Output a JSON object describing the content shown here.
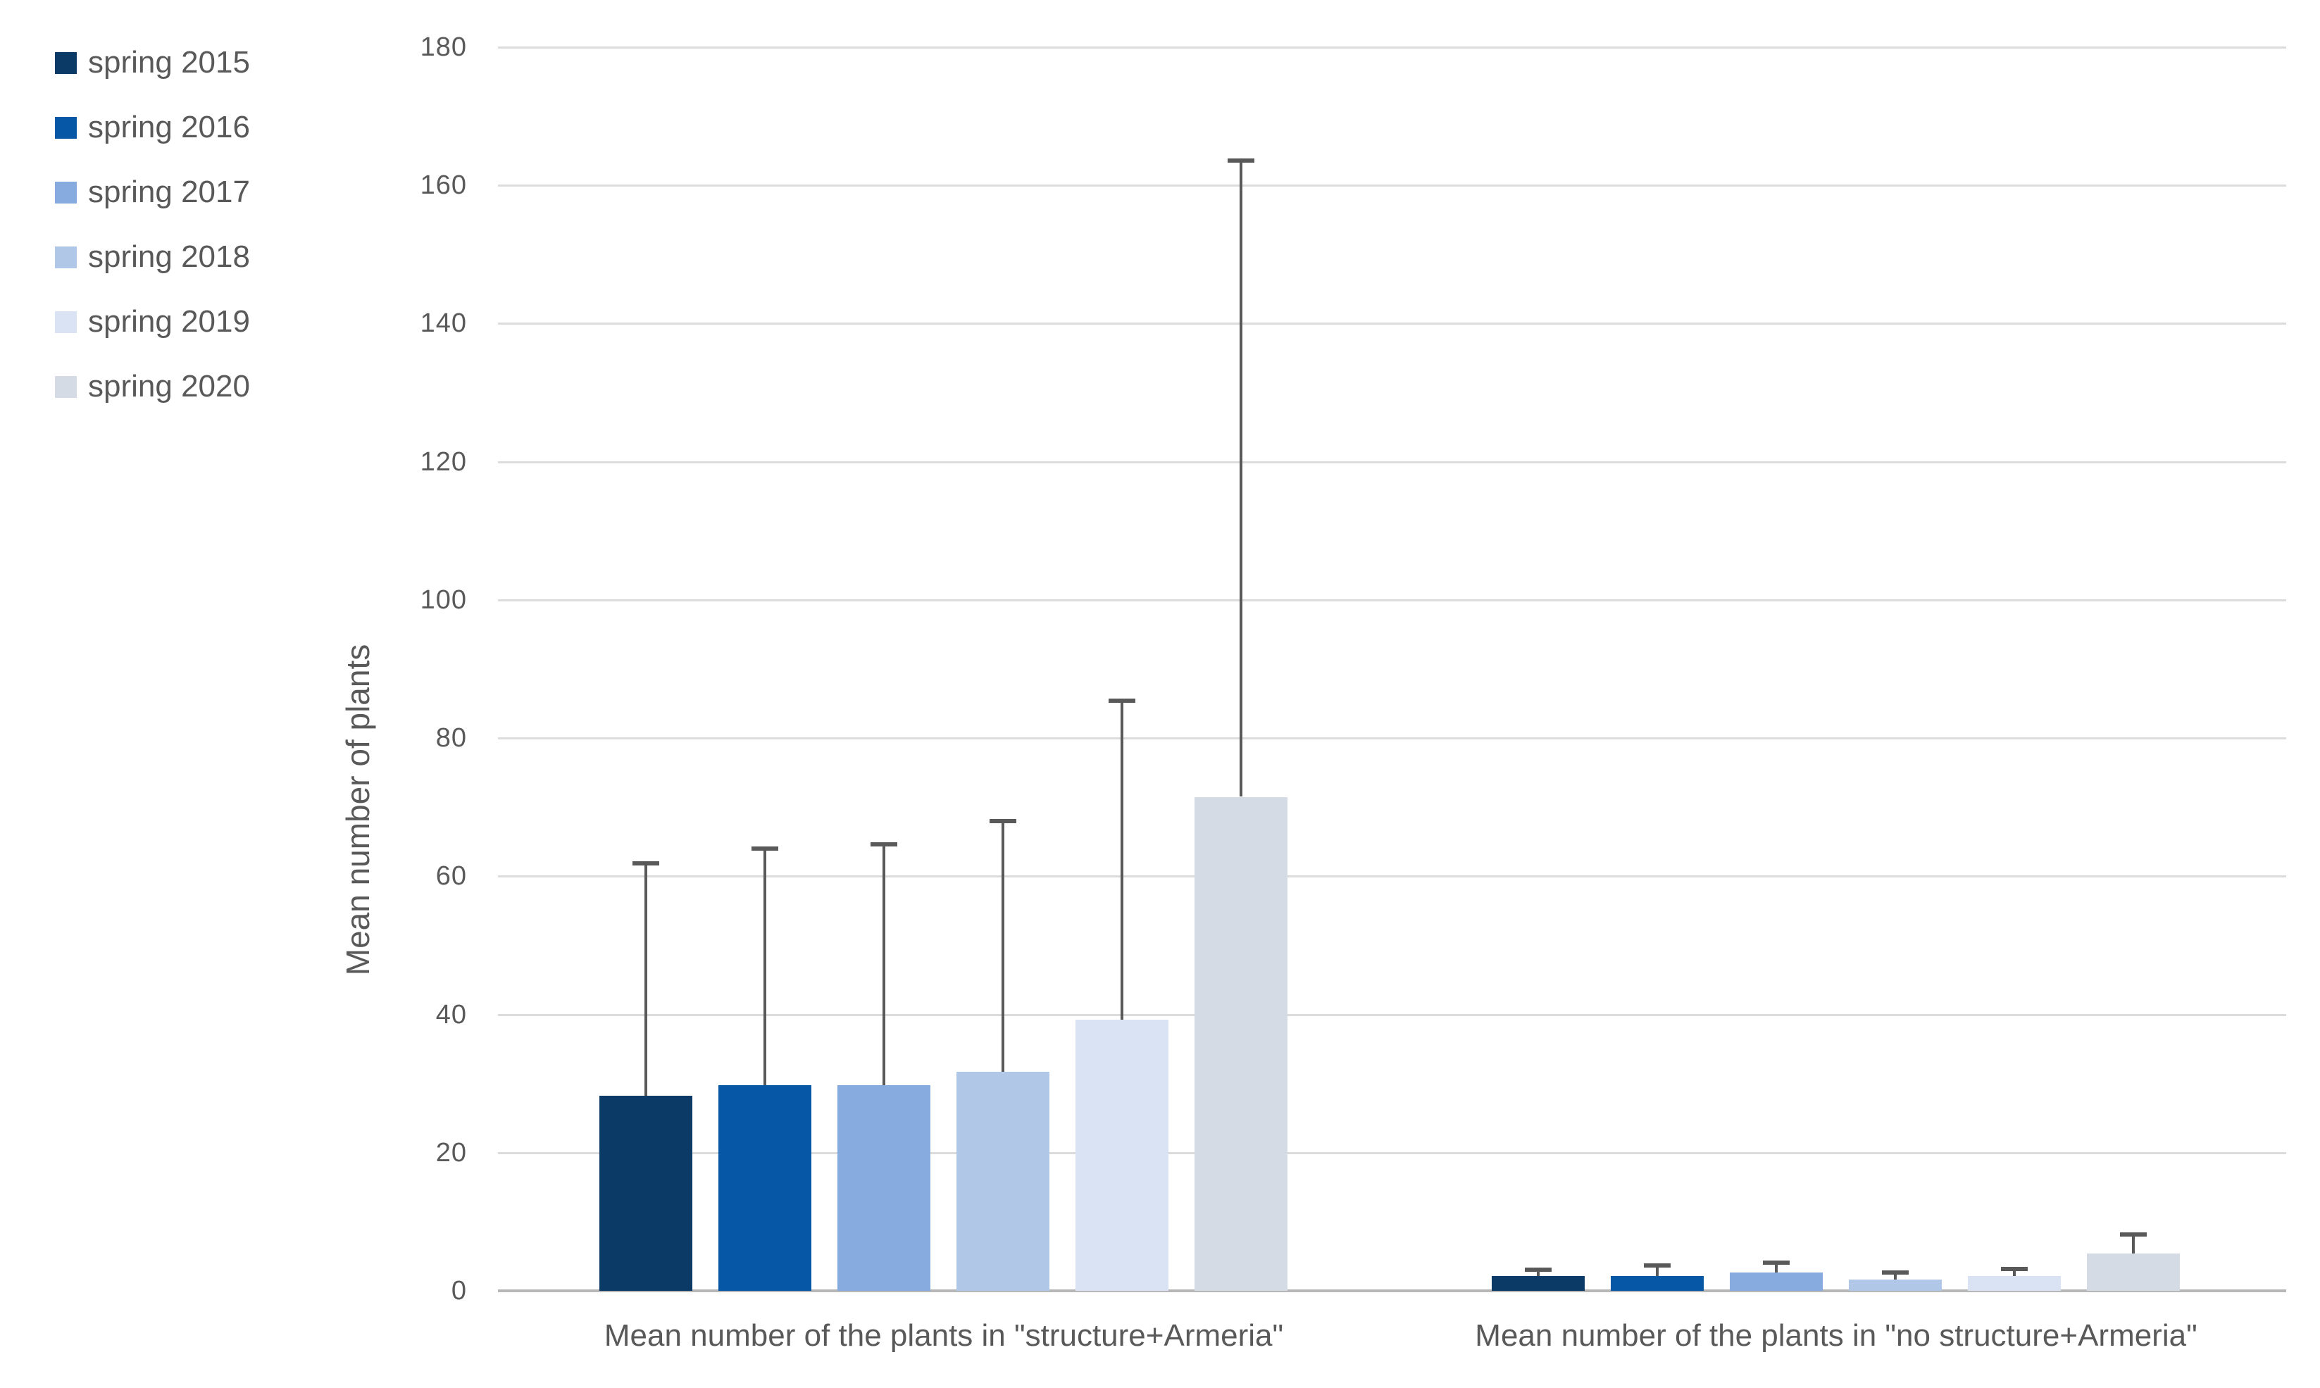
{
  "chart_data": {
    "type": "bar",
    "title": "",
    "ylabel": "Mean number of plants",
    "xlabel": "",
    "ylim": [
      0,
      180
    ],
    "yticks": [
      0,
      20,
      40,
      60,
      80,
      100,
      120,
      140,
      160,
      180
    ],
    "grid": true,
    "legend_position": "top-left",
    "error_bars": "plus-direction-with-caps",
    "categories": [
      "Mean number of the plants in \"structure+Armeria\"",
      "Mean number of the plants in \"no structure+Armeria\""
    ],
    "series": [
      {
        "name": "spring 2015",
        "color": "#0c3a67",
        "values": [
          28.2,
          2.1
        ],
        "error_top": [
          61.9,
          3.1
        ]
      },
      {
        "name": "spring 2016",
        "color": "#0757a7",
        "values": [
          29.8,
          2.1
        ],
        "error_top": [
          64.0,
          3.7
        ]
      },
      {
        "name": "spring 2017",
        "color": "#87abde",
        "values": [
          29.8,
          2.6
        ],
        "error_top": [
          64.6,
          4.1
        ]
      },
      {
        "name": "spring 2018",
        "color": "#b1c7e8",
        "values": [
          31.7,
          1.6
        ],
        "error_top": [
          68.0,
          2.6
        ]
      },
      {
        "name": "spring 2019",
        "color": "#d9e3f4",
        "values": [
          39.2,
          2.1
        ],
        "error_top": [
          85.4,
          3.2
        ]
      },
      {
        "name": "spring 2020",
        "color": "#d5dbe4",
        "values": [
          71.5,
          5.4
        ],
        "error_top": [
          163.6,
          8.2
        ]
      }
    ],
    "colors": {
      "gridline": "#dcdcdc",
      "axis_line": "#b7b7b7",
      "error_bar": "#595959",
      "text": "#595959"
    }
  }
}
